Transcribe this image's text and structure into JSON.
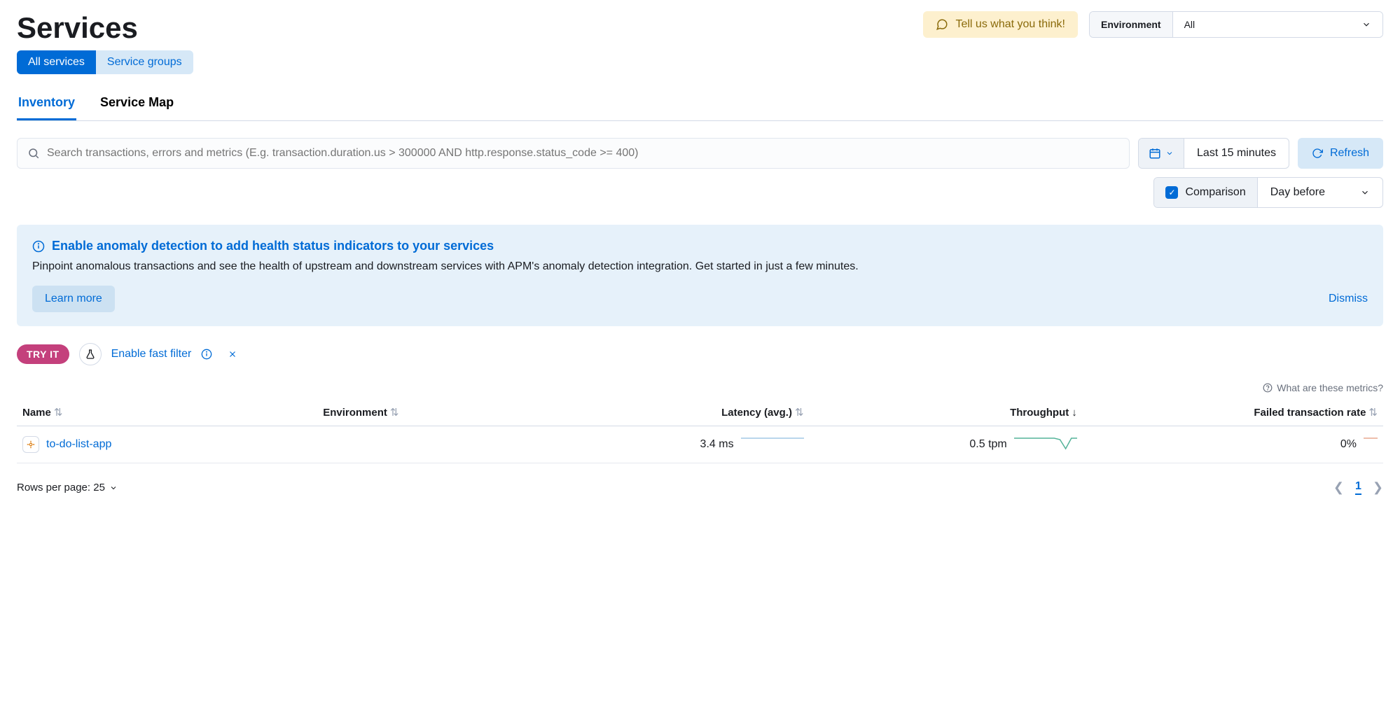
{
  "colors": {
    "primary_blue": "#006bd6",
    "feedback_bg": "#fdf0ce",
    "feedback_text": "#8a6a0a",
    "callout_bg": "#e6f1fa",
    "tryit_bg": "#c4407c",
    "spark_green": "#54b399",
    "spark_blue_faint": "#a2c8e6",
    "spark_orange_faint": "#e8a98f"
  },
  "header": {
    "page_title": "Services",
    "feedback_label": "Tell us what you think!",
    "env_label": "Environment",
    "env_value": "All"
  },
  "pill_tabs": [
    {
      "label": "All services",
      "active": true
    },
    {
      "label": "Service groups",
      "active": false
    }
  ],
  "sub_tabs": [
    {
      "label": "Inventory",
      "active": true
    },
    {
      "label": "Service Map",
      "active": false
    }
  ],
  "search": {
    "placeholder": "Search transactions, errors and metrics (E.g. transaction.duration.us > 300000 AND http.response.status_code >= 400)"
  },
  "time_picker": {
    "range_label": "Last 15 minutes"
  },
  "refresh_label": "Refresh",
  "comparison": {
    "label": "Comparison",
    "checked": true,
    "value": "Day before"
  },
  "callout": {
    "title": "Enable anomaly detection to add health status indicators to your services",
    "body": "Pinpoint anomalous transactions and see the health of upstream and downstream services with APM's anomaly detection integration. Get started in just a few minutes.",
    "learn_more": "Learn more",
    "dismiss": "Dismiss"
  },
  "fast_filter": {
    "badge": "TRY IT",
    "label": "Enable fast filter"
  },
  "metrics_help": "What are these metrics?",
  "table": {
    "columns": [
      {
        "label": "Name",
        "align": "left",
        "width": "22%",
        "sort": "none"
      },
      {
        "label": "Environment",
        "align": "left",
        "width": "18%",
        "sort": "none"
      },
      {
        "label": "Latency (avg.)",
        "align": "right",
        "width": "18%",
        "sort": "none"
      },
      {
        "label": "Throughput",
        "align": "right",
        "width": "20%",
        "sort": "desc"
      },
      {
        "label": "Failed transaction rate",
        "align": "right",
        "width": "22%",
        "sort": "none"
      }
    ],
    "rows": [
      {
        "name": "to-do-list-app",
        "environment": "",
        "latency": "3.4 ms",
        "latency_spark": {
          "points": [
            5,
            5,
            5,
            5,
            5,
            5,
            5,
            5,
            5,
            5,
            5,
            5
          ],
          "color": "#a2c8e6"
        },
        "throughput": "0.5 tpm",
        "throughput_spark": {
          "points": [
            18,
            18,
            18,
            18,
            18,
            18,
            18,
            18,
            16,
            3,
            18,
            18
          ],
          "color": "#54b399"
        },
        "failed_rate": "0%",
        "failed_spark": {
          "points": [
            5,
            5
          ],
          "color": "#e8a98f"
        }
      }
    ]
  },
  "footer": {
    "rows_per_page_label": "Rows per page: 25",
    "current_page": "1"
  }
}
